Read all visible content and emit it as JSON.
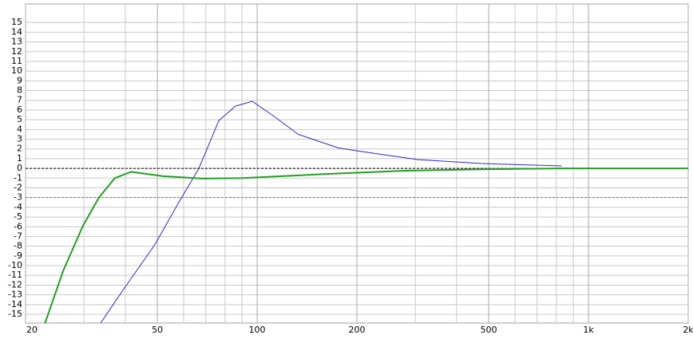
{
  "chart_data": {
    "type": "line",
    "log_x": true,
    "xlim": [
      20,
      2000
    ],
    "ylim": [
      -15.9,
      16.9
    ],
    "xticks": [
      20,
      50,
      100,
      200,
      500,
      {
        "value": 1000,
        "label": "1k"
      },
      {
        "value": 2000,
        "label": "2k"
      }
    ],
    "xminor": [
      30,
      40,
      60,
      70,
      80,
      90,
      300,
      400,
      600,
      700,
      800,
      900
    ],
    "yticks": [
      -15,
      -14,
      -13,
      -12,
      -11,
      -10,
      -9,
      -8,
      -7,
      -6,
      -5,
      -4,
      -3,
      -2,
      -1,
      0,
      1,
      2,
      3,
      4,
      5,
      6,
      7,
      8,
      9,
      10,
      11,
      12,
      13,
      14,
      15
    ],
    "grid": true,
    "reference_lines": [
      {
        "value": 0,
        "color": "#000000"
      },
      {
        "value": -3,
        "color": "#808080"
      }
    ],
    "series": [
      {
        "color": "#2828c8",
        "width": 1,
        "x": [
          33.7,
          39.4,
          49,
          58,
          66.7,
          76.6,
          86,
          96.7,
          113,
          133,
          176,
          220,
          306,
          477,
          830
        ],
        "values": [
          -15.9,
          -12.5,
          -7.9,
          -3.5,
          0,
          4.9,
          6.4,
          6.9,
          5.3,
          3.5,
          2.1,
          1.6,
          0.9,
          0.5,
          0.25
        ]
      },
      {
        "color": "#22a022",
        "width": 2,
        "x": [
          22.9,
          26,
          29.8,
          33.3,
          37.2,
          41.6,
          52,
          68.6,
          90,
          157,
          274,
          477,
          830,
          2000
        ],
        "values": [
          -15.9,
          -10.5,
          -5.9,
          -3,
          -1,
          -0.35,
          -0.8,
          -1.05,
          -1,
          -0.6,
          -0.25,
          -0.1,
          0,
          0
        ]
      }
    ]
  }
}
